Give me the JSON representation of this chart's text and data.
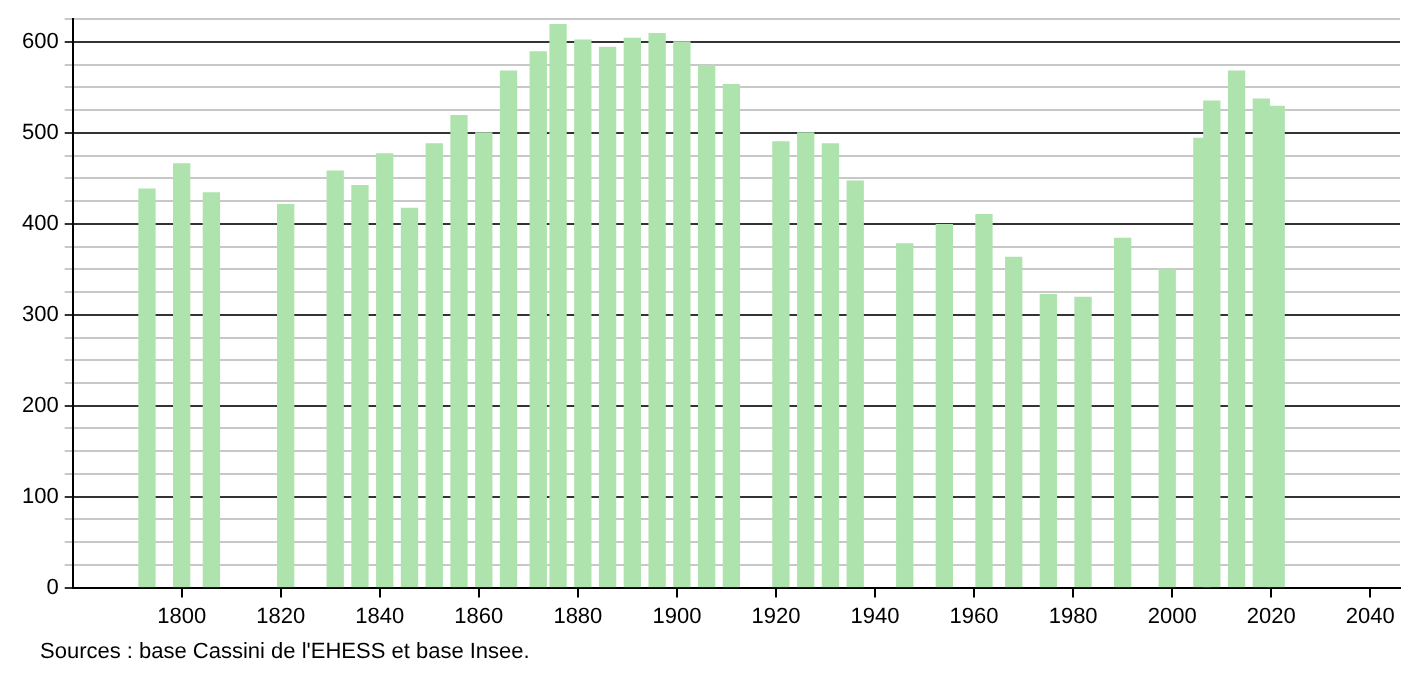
{
  "chart_data": {
    "type": "bar",
    "x": [
      1793,
      1800,
      1806,
      1821,
      1831,
      1836,
      1841,
      1846,
      1851,
      1856,
      1861,
      1866,
      1872,
      1876,
      1881,
      1886,
      1891,
      1896,
      1901,
      1906,
      1911,
      1921,
      1926,
      1931,
      1936,
      1946,
      1954,
      1962,
      1968,
      1975,
      1982,
      1990,
      1999,
      2006,
      2008,
      2013,
      2018,
      2021
    ],
    "values": [
      438,
      466,
      434,
      421,
      458,
      442,
      477,
      417,
      488,
      519,
      500,
      568,
      589,
      619,
      602,
      594,
      604,
      609,
      600,
      574,
      553,
      490,
      500,
      488,
      447,
      378,
      399,
      410,
      363,
      322,
      319,
      384,
      350,
      494,
      535,
      568,
      537,
      529
    ],
    "color": "#aee3ae",
    "xlim": [
      1778,
      2046
    ],
    "xticks": [
      1800,
      1820,
      1840,
      1860,
      1880,
      1900,
      1920,
      1940,
      1960,
      1980,
      2000,
      2020,
      2040
    ],
    "ylim": [
      0,
      625
    ],
    "yticks": [
      0,
      {
        "value": 25,
        "label": null
      },
      {
        "value": 50,
        "label": null
      },
      {
        "value": 75,
        "label": null
      },
      100,
      {
        "value": 125,
        "label": null
      },
      {
        "value": 150,
        "label": null
      },
      {
        "value": 175,
        "label": null
      },
      200,
      {
        "value": 225,
        "label": null
      },
      {
        "value": 250,
        "label": null
      },
      {
        "value": 275,
        "label": null
      },
      300,
      {
        "value": 325,
        "label": null
      },
      {
        "value": 350,
        "label": null
      },
      {
        "value": 375,
        "label": null
      },
      400,
      {
        "value": 425,
        "label": null
      },
      {
        "value": 450,
        "label": null
      },
      {
        "value": 475,
        "label": null
      },
      500,
      {
        "value": 525,
        "label": null
      },
      {
        "value": 550,
        "label": null
      },
      {
        "value": 575,
        "label": null
      },
      600,
      {
        "value": 625,
        "label": null
      }
    ],
    "grid": "y",
    "annotations": [
      "Sources : base Cassini de l'EHESS et base Insee."
    ]
  }
}
